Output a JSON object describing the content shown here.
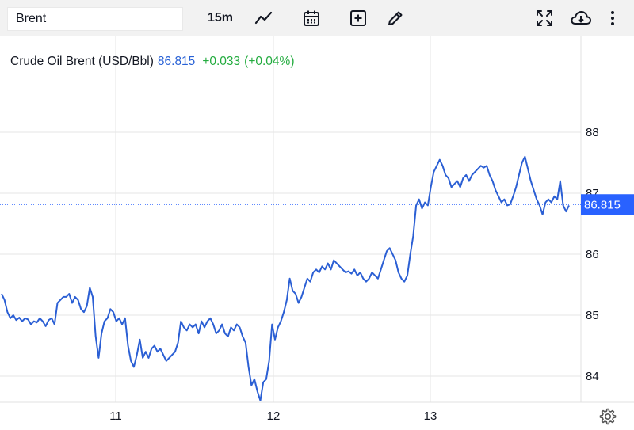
{
  "toolbar": {
    "symbol_value": "Brent",
    "interval": "15m",
    "icons": [
      "line-chart-icon",
      "calendar-icon",
      "plus-square-icon",
      "pencil-icon",
      "fullscreen-icon",
      "cloud-download-icon",
      "more-vertical-icon"
    ]
  },
  "legend": {
    "name": "Crude Oil Brent (USD/Bbl)",
    "price": "86.815",
    "change": "+0.033",
    "change_pct": "(+0.04%)"
  },
  "colors": {
    "line": "#2b5fd4",
    "price_label_bg": "#2962ff",
    "up": "#22ab3e",
    "grid": "#e6e6e6"
  },
  "chart_data": {
    "type": "line",
    "title": "Crude Oil Brent (USD/Bbl)",
    "xlabel": "",
    "ylabel": "",
    "x_ticks": [
      "11",
      "12",
      "13"
    ],
    "y_ticks": [
      "84",
      "85",
      "86",
      "87",
      "88"
    ],
    "ylim": [
      83.2,
      88.6
    ],
    "current_price_label": "86.815",
    "grid": true,
    "series": [
      {
        "values": [
          85.35,
          85.25,
          85.05,
          84.95,
          85.0,
          84.92,
          84.96,
          84.9,
          84.95,
          84.93,
          84.85,
          84.9,
          84.88,
          84.95,
          84.9,
          84.82,
          84.92,
          84.95,
          84.85,
          85.2,
          85.25,
          85.3,
          85.3,
          85.35,
          85.2,
          85.3,
          85.25,
          85.1,
          85.05,
          85.15,
          85.45,
          85.3,
          84.65,
          84.3,
          84.7,
          84.9,
          84.95,
          85.1,
          85.05,
          84.9,
          84.95,
          84.85,
          84.95,
          84.5,
          84.25,
          84.15,
          84.35,
          84.6,
          84.3,
          84.4,
          84.3,
          84.45,
          84.5,
          84.4,
          84.45,
          84.35,
          84.25,
          84.3,
          84.35,
          84.4,
          84.55,
          84.9,
          84.8,
          84.75,
          84.85,
          84.8,
          84.85,
          84.7,
          84.9,
          84.8,
          84.9,
          84.95,
          84.85,
          84.7,
          84.75,
          84.85,
          84.7,
          84.65,
          84.8,
          84.75,
          84.85,
          84.8,
          84.65,
          84.55,
          84.15,
          83.85,
          83.95,
          83.75,
          83.6,
          83.9,
          83.95,
          84.25,
          84.85,
          84.6,
          84.8,
          84.9,
          85.05,
          85.25,
          85.6,
          85.4,
          85.35,
          85.2,
          85.3,
          85.45,
          85.6,
          85.55,
          85.7,
          85.75,
          85.7,
          85.8,
          85.75,
          85.85,
          85.75,
          85.9,
          85.85,
          85.8,
          85.75,
          85.7,
          85.72,
          85.68,
          85.75,
          85.65,
          85.7,
          85.6,
          85.55,
          85.6,
          85.7,
          85.65,
          85.6,
          85.75,
          85.9,
          86.05,
          86.1,
          86.0,
          85.9,
          85.7,
          85.6,
          85.55,
          85.65,
          86.0,
          86.3,
          86.8,
          86.9,
          86.75,
          86.85,
          86.8,
          87.1,
          87.35,
          87.45,
          87.55,
          87.45,
          87.3,
          87.25,
          87.1,
          87.15,
          87.2,
          87.1,
          87.25,
          87.3,
          87.2,
          87.3,
          87.35,
          87.4,
          87.45,
          87.42,
          87.45,
          87.3,
          87.2,
          87.05,
          86.95,
          86.85,
          86.9,
          86.8,
          86.82,
          86.95,
          87.1,
          87.3,
          87.5,
          87.6,
          87.4,
          87.2,
          87.05,
          86.9,
          86.8,
          86.65,
          86.85,
          86.9,
          86.85,
          86.95,
          86.9,
          87.2,
          86.8,
          86.7,
          86.8
        ]
      }
    ]
  },
  "bottom": {
    "settings_icon": "gear-icon"
  }
}
